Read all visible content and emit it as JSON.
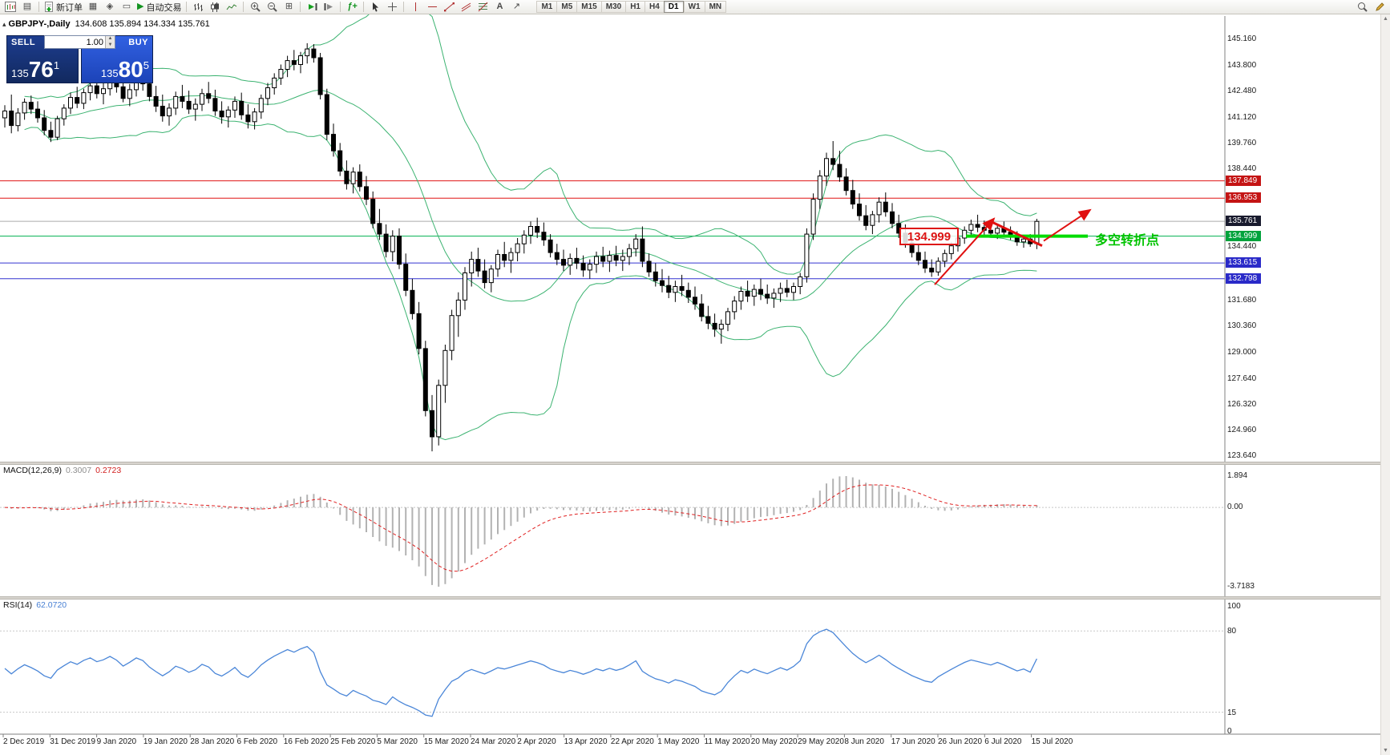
{
  "toolbar": {
    "new_order": "新订单",
    "autotrading": "自动交易",
    "timeframes": [
      "M1",
      "M5",
      "M15",
      "M30",
      "H1",
      "H4",
      "D1",
      "W1",
      "MN"
    ],
    "active_timeframe": "D1"
  },
  "chart": {
    "symbol_title": "GBPJPY-,Daily",
    "ohlc_title": "134.608 135.894 134.334 135.761",
    "axis_ticks": [
      "145.160",
      "143.800",
      "142.480",
      "141.120",
      "139.760",
      "138.440",
      "134.440",
      "131.680",
      "130.360",
      "129.000",
      "127.640",
      "126.320",
      "124.960",
      "123.640"
    ],
    "price_tags": [
      {
        "value": "137.849",
        "bg": "#c41414"
      },
      {
        "value": "136.953",
        "bg": "#c41414"
      },
      {
        "value": "135.761",
        "bg": "#191b2e"
      },
      {
        "value": "134.999",
        "bg": "#00a33c"
      },
      {
        "value": "133.615",
        "bg": "#2a2ac8"
      },
      {
        "value": "132.798",
        "bg": "#2a2ac8"
      }
    ],
    "price_lines": [
      {
        "price": 137.849,
        "color": "#e01414",
        "width": 1
      },
      {
        "price": 136.953,
        "color": "#e01414",
        "width": 1
      },
      {
        "price": 135.761,
        "color": "#ababab",
        "width": 1
      },
      {
        "price": 134.999,
        "color": "#00b050",
        "width": 1
      },
      {
        "price": 133.615,
        "color": "#3434d0",
        "width": 1
      },
      {
        "price": 132.798,
        "color": "#3434d0",
        "width": 1
      }
    ],
    "annotations": {
      "price_box": "134.999",
      "turning_label": "多空转折点",
      "highlight_color": "#00dc00",
      "arrow_color": "#e01010"
    }
  },
  "one_click": {
    "sell_label": "SELL",
    "buy_label": "BUY",
    "volume": "1.00",
    "sell_small": "135",
    "sell_big": "76",
    "sell_sup": "1",
    "buy_small": "135",
    "buy_big": "80",
    "buy_sup": "5"
  },
  "macd": {
    "name": "MACD(12,26,9)",
    "value_main": "0.3007",
    "value_signal": "0.2723",
    "scale_top": "1.894",
    "scale_zero": "0.00",
    "scale_bottom": "-3.7183"
  },
  "rsi": {
    "name": "RSI(14)",
    "value": "62.0720",
    "scale": [
      "100",
      "80",
      "15",
      "0"
    ],
    "levels": [
      80,
      15
    ]
  },
  "dates": [
    "2 Dec 2019",
    "31 Dec 2019",
    "9 Jan 2020",
    "19 Jan 2020",
    "28 Jan 2020",
    "6 Feb 2020",
    "16 Feb 2020",
    "25 Feb 2020",
    "5 Mar 2020",
    "15 Mar 2020",
    "24 Mar 2020",
    "2 Apr 2020",
    "13 Apr 2020",
    "22 Apr 2020",
    "1 May 2020",
    "11 May 2020",
    "20 May 2020",
    "29 May 2020",
    "8 Jun 2020",
    "17 Jun 2020",
    "26 Jun 2020",
    "6 Jul 2020",
    "15 Jul 2020"
  ],
  "chart_data": {
    "type": "candlestick",
    "symbol": "GBPJPY-",
    "timeframe": "Daily",
    "y_axis_range": [
      123.45,
      146.35
    ],
    "indicators": [
      {
        "type": "bollinger",
        "period": 20,
        "deviation": 2,
        "color": "#3CB371"
      },
      {
        "type": "macd",
        "fast": 12,
        "slow": 26,
        "signal": 9,
        "histogram_color": "#b2b2b2",
        "signal_color": "#e02020"
      },
      {
        "type": "rsi",
        "period": 14,
        "color": "#4a86d8"
      }
    ],
    "ohlc": [
      [
        141.1,
        141.75,
        140.6,
        141.45
      ],
      [
        141.45,
        142.3,
        140.3,
        140.7
      ],
      [
        140.7,
        141.6,
        140.4,
        141.35
      ],
      [
        141.35,
        142.1,
        141.0,
        141.9
      ],
      [
        141.9,
        142.25,
        141.3,
        141.55
      ],
      [
        141.55,
        141.95,
        140.85,
        141.1
      ],
      [
        141.1,
        141.5,
        140.2,
        140.45
      ],
      [
        140.45,
        140.9,
        139.85,
        140.1
      ],
      [
        140.1,
        141.2,
        139.95,
        141.05
      ],
      [
        141.05,
        141.8,
        140.7,
        141.6
      ],
      [
        141.6,
        142.4,
        141.3,
        142.15
      ],
      [
        142.15,
        142.7,
        141.6,
        141.85
      ],
      [
        141.85,
        142.6,
        141.55,
        142.4
      ],
      [
        142.4,
        143.0,
        142.0,
        142.75
      ],
      [
        142.75,
        143.2,
        142.1,
        142.35
      ],
      [
        142.35,
        142.9,
        141.8,
        142.6
      ],
      [
        142.6,
        143.35,
        142.25,
        143.05
      ],
      [
        143.05,
        143.5,
        142.4,
        142.7
      ],
      [
        142.7,
        143.1,
        141.9,
        142.1
      ],
      [
        142.1,
        142.85,
        141.7,
        142.55
      ],
      [
        142.55,
        143.4,
        142.2,
        143.1
      ],
      [
        143.1,
        143.6,
        142.5,
        142.85
      ],
      [
        142.85,
        143.3,
        141.95,
        142.2
      ],
      [
        142.2,
        142.75,
        141.4,
        141.7
      ],
      [
        141.7,
        142.3,
        140.9,
        141.2
      ],
      [
        141.2,
        141.85,
        140.7,
        141.6
      ],
      [
        141.6,
        142.45,
        141.25,
        142.2
      ],
      [
        142.2,
        142.8,
        141.6,
        141.95
      ],
      [
        141.95,
        142.5,
        141.3,
        141.55
      ],
      [
        141.55,
        142.1,
        140.95,
        141.8
      ],
      [
        141.8,
        142.6,
        141.45,
        142.35
      ],
      [
        142.35,
        142.95,
        141.85,
        142.1
      ],
      [
        142.1,
        142.55,
        141.2,
        141.45
      ],
      [
        141.45,
        141.95,
        140.8,
        141.15
      ],
      [
        141.15,
        141.7,
        140.6,
        141.5
      ],
      [
        141.5,
        142.2,
        141.1,
        141.95
      ],
      [
        141.95,
        142.4,
        141.0,
        141.25
      ],
      [
        141.25,
        141.8,
        140.55,
        140.9
      ],
      [
        140.9,
        141.6,
        140.5,
        141.4
      ],
      [
        141.4,
        142.3,
        141.05,
        142.1
      ],
      [
        142.1,
        142.9,
        141.75,
        142.65
      ],
      [
        142.65,
        143.4,
        142.3,
        143.15
      ],
      [
        143.15,
        143.85,
        142.8,
        143.6
      ],
      [
        143.6,
        144.3,
        143.2,
        144.05
      ],
      [
        144.05,
        144.6,
        143.55,
        143.85
      ],
      [
        143.85,
        144.5,
        143.4,
        144.3
      ],
      [
        144.3,
        144.95,
        143.9,
        144.65
      ],
      [
        144.65,
        144.9,
        143.95,
        144.2
      ],
      [
        144.2,
        144.45,
        142.05,
        142.3
      ],
      [
        142.3,
        142.6,
        139.95,
        140.25
      ],
      [
        140.25,
        140.8,
        139.1,
        139.4
      ],
      [
        139.4,
        139.8,
        138.1,
        138.35
      ],
      [
        138.35,
        138.9,
        137.4,
        137.7
      ],
      [
        137.7,
        138.55,
        137.2,
        138.3
      ],
      [
        138.3,
        138.7,
        137.3,
        137.55
      ],
      [
        137.55,
        138.1,
        136.6,
        136.9
      ],
      [
        136.9,
        137.3,
        135.4,
        135.65
      ],
      [
        135.65,
        136.4,
        134.8,
        135.1
      ],
      [
        135.1,
        135.6,
        133.9,
        134.2
      ],
      [
        134.2,
        135.3,
        133.7,
        135.0
      ],
      [
        135.0,
        135.4,
        133.3,
        133.55
      ],
      [
        133.55,
        134.1,
        131.9,
        132.2
      ],
      [
        132.2,
        132.8,
        130.7,
        131.0
      ],
      [
        131.0,
        131.6,
        128.9,
        129.2
      ],
      [
        129.2,
        129.6,
        125.7,
        126.0
      ],
      [
        126.0,
        126.8,
        123.9,
        124.65
      ],
      [
        124.65,
        127.6,
        124.2,
        127.3
      ],
      [
        127.3,
        129.4,
        126.4,
        129.1
      ],
      [
        129.1,
        131.2,
        128.6,
        130.9
      ],
      [
        130.9,
        132.1,
        129.8,
        131.7
      ],
      [
        131.7,
        133.4,
        131.2,
        133.1
      ],
      [
        133.1,
        134.2,
        132.4,
        133.8
      ],
      [
        133.8,
        134.4,
        132.9,
        133.2
      ],
      [
        133.2,
        133.8,
        132.3,
        132.6
      ],
      [
        132.6,
        133.5,
        132.1,
        133.3
      ],
      [
        133.3,
        134.3,
        132.9,
        134.05
      ],
      [
        134.05,
        134.7,
        133.4,
        133.75
      ],
      [
        133.75,
        134.4,
        133.1,
        134.15
      ],
      [
        134.15,
        134.9,
        133.7,
        134.6
      ],
      [
        134.6,
        135.3,
        134.1,
        135.05
      ],
      [
        135.05,
        135.75,
        134.6,
        135.5
      ],
      [
        135.5,
        135.95,
        134.9,
        135.2
      ],
      [
        135.2,
        135.7,
        134.5,
        134.8
      ],
      [
        134.8,
        135.1,
        133.9,
        134.15
      ],
      [
        134.15,
        134.6,
        133.5,
        133.8
      ],
      [
        133.8,
        134.3,
        133.2,
        133.5
      ],
      [
        133.5,
        134.1,
        133.0,
        133.85
      ],
      [
        133.85,
        134.4,
        133.3,
        133.6
      ],
      [
        133.6,
        134.0,
        132.9,
        133.25
      ],
      [
        133.25,
        133.8,
        132.8,
        133.55
      ],
      [
        133.55,
        134.2,
        133.1,
        133.95
      ],
      [
        133.95,
        134.45,
        133.4,
        133.7
      ],
      [
        133.7,
        134.25,
        133.15,
        134.0
      ],
      [
        134.0,
        134.5,
        133.45,
        133.75
      ],
      [
        133.75,
        134.3,
        133.2,
        133.95
      ],
      [
        133.95,
        134.6,
        133.5,
        134.35
      ],
      [
        134.35,
        135.1,
        133.95,
        134.85
      ],
      [
        134.85,
        135.5,
        133.4,
        133.7
      ],
      [
        133.7,
        134.1,
        132.9,
        133.15
      ],
      [
        133.15,
        133.6,
        132.4,
        132.7
      ],
      [
        132.7,
        133.3,
        132.1,
        132.45
      ],
      [
        132.45,
        132.95,
        131.8,
        132.1
      ],
      [
        132.1,
        132.7,
        131.6,
        132.4
      ],
      [
        132.4,
        133.0,
        131.9,
        132.2
      ],
      [
        132.2,
        132.6,
        131.55,
        131.85
      ],
      [
        131.85,
        132.4,
        131.2,
        131.5
      ],
      [
        131.5,
        132.0,
        130.6,
        130.85
      ],
      [
        130.85,
        131.4,
        130.2,
        130.5
      ],
      [
        130.5,
        131.0,
        129.8,
        130.2
      ],
      [
        130.2,
        130.7,
        129.45,
        130.45
      ],
      [
        130.45,
        131.3,
        130.1,
        131.1
      ],
      [
        131.1,
        131.9,
        130.7,
        131.65
      ],
      [
        131.65,
        132.4,
        131.2,
        132.15
      ],
      [
        132.15,
        132.7,
        131.6,
        131.9
      ],
      [
        131.9,
        132.5,
        131.4,
        132.25
      ],
      [
        132.25,
        132.8,
        131.7,
        132.0
      ],
      [
        132.0,
        132.5,
        131.5,
        131.8
      ],
      [
        131.8,
        132.3,
        131.3,
        132.05
      ],
      [
        132.05,
        132.6,
        131.6,
        132.3
      ],
      [
        132.3,
        132.75,
        131.85,
        132.1
      ],
      [
        132.1,
        132.6,
        131.7,
        132.4
      ],
      [
        132.4,
        133.1,
        132.0,
        132.9
      ],
      [
        132.9,
        135.4,
        132.6,
        135.1
      ],
      [
        135.1,
        137.2,
        134.8,
        136.9
      ],
      [
        136.9,
        138.4,
        136.4,
        138.1
      ],
      [
        138.1,
        139.3,
        137.6,
        139.0
      ],
      [
        139.0,
        139.9,
        138.4,
        138.7
      ],
      [
        138.7,
        139.4,
        137.8,
        138.05
      ],
      [
        138.05,
        138.5,
        137.1,
        137.35
      ],
      [
        137.35,
        137.9,
        136.4,
        136.65
      ],
      [
        136.65,
        137.2,
        135.8,
        136.05
      ],
      [
        136.05,
        136.6,
        135.3,
        135.55
      ],
      [
        135.55,
        136.3,
        135.1,
        136.1
      ],
      [
        136.1,
        137.0,
        135.7,
        136.75
      ],
      [
        136.75,
        137.25,
        136.0,
        136.25
      ],
      [
        136.25,
        136.7,
        135.4,
        135.65
      ],
      [
        135.65,
        136.1,
        134.9,
        135.15
      ],
      [
        135.15,
        135.6,
        134.4,
        134.65
      ],
      [
        134.65,
        135.0,
        133.9,
        134.15
      ],
      [
        134.15,
        134.6,
        133.5,
        133.75
      ],
      [
        133.75,
        134.2,
        133.1,
        133.35
      ],
      [
        133.35,
        133.8,
        132.9,
        133.15
      ],
      [
        133.15,
        133.9,
        132.95,
        133.7
      ],
      [
        133.7,
        134.3,
        133.4,
        134.1
      ],
      [
        134.1,
        134.7,
        133.8,
        134.5
      ],
      [
        134.5,
        135.1,
        134.2,
        134.9
      ],
      [
        134.9,
        135.5,
        134.6,
        135.3
      ],
      [
        135.3,
        135.85,
        135.0,
        135.6
      ],
      [
        135.6,
        136.1,
        135.2,
        135.45
      ],
      [
        135.45,
        135.8,
        135.05,
        135.3
      ],
      [
        135.3,
        135.7,
        134.95,
        135.15
      ],
      [
        135.15,
        135.55,
        134.85,
        135.4
      ],
      [
        135.4,
        135.75,
        135.0,
        135.2
      ],
      [
        135.2,
        135.5,
        134.8,
        134.95
      ],
      [
        134.95,
        135.25,
        134.5,
        134.7
      ],
      [
        134.7,
        135.05,
        134.4,
        134.85
      ],
      [
        134.85,
        135.1,
        134.45,
        134.6
      ],
      [
        134.61,
        135.89,
        134.33,
        135.76
      ]
    ]
  }
}
